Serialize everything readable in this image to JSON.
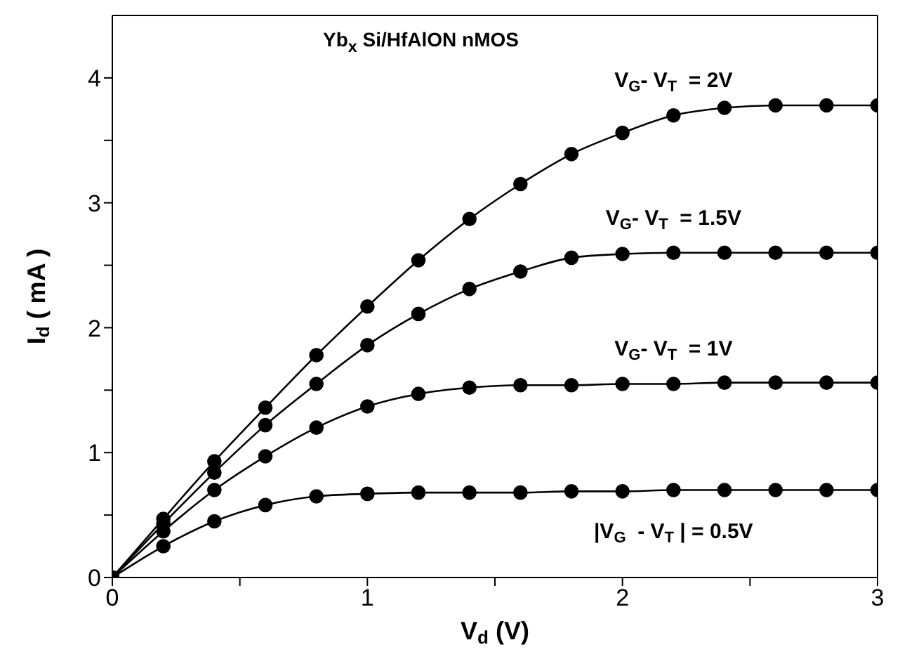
{
  "chart_data": {
    "type": "line",
    "title": "Yb$_{x}$ Si/HfAlON nMOS",
    "xlabel": "V$_{d}$ (V)",
    "ylabel": "I$_{d}$ ( mA )",
    "x": [
      0,
      0.2,
      0.4,
      0.6,
      0.8,
      1.0,
      1.2,
      1.4,
      1.6,
      1.8,
      2.0,
      2.2,
      2.4,
      2.6,
      2.8,
      3.0
    ],
    "series": [
      {
        "name": "V$_{G}$- V$_{T}$  = 2V",
        "color": "#000000",
        "values": [
          0,
          0.47,
          0.93,
          1.36,
          1.78,
          2.17,
          2.54,
          2.87,
          3.15,
          3.39,
          3.56,
          3.7,
          3.76,
          3.78,
          3.78,
          3.78
        ]
      },
      {
        "name": "V$_{G}$- V$_{T}$  = 1.5V",
        "color": "#000000",
        "values": [
          0,
          0.43,
          0.84,
          1.22,
          1.55,
          1.86,
          2.11,
          2.31,
          2.45,
          2.56,
          2.59,
          2.6,
          2.6,
          2.6,
          2.6,
          2.6
        ]
      },
      {
        "name": "V$_{G}$- V$_{T}$  = 1V",
        "color": "#000000",
        "values": [
          0,
          0.37,
          0.7,
          0.97,
          1.2,
          1.37,
          1.47,
          1.52,
          1.54,
          1.54,
          1.55,
          1.55,
          1.56,
          1.56,
          1.56,
          1.56
        ]
      },
      {
        "name": "|V$_{G}$  - V$_{T}$ | = 0.5V",
        "color": "#000000",
        "values": [
          0,
          0.25,
          0.45,
          0.58,
          0.65,
          0.67,
          0.68,
          0.68,
          0.68,
          0.69,
          0.69,
          0.7,
          0.7,
          0.7,
          0.7,
          0.7
        ]
      }
    ],
    "xlim": [
      0,
      3
    ],
    "xticks": [
      0,
      {
        "value": 0.5,
        "label": null
      },
      1,
      {
        "value": 1.5,
        "label": null
      },
      2,
      {
        "value": 2.5,
        "label": null
      },
      3
    ],
    "ylim": [
      0,
      4.5
    ],
    "yticks": [
      0,
      {
        "value": 0.5,
        "label": null
      },
      1,
      {
        "value": 1.5,
        "label": null
      },
      2,
      {
        "value": 2.5,
        "label": null
      },
      3,
      {
        "value": 3.5,
        "label": null
      },
      4
    ],
    "marker": "circle",
    "line_style": "solid",
    "grid": false,
    "legend": false
  }
}
